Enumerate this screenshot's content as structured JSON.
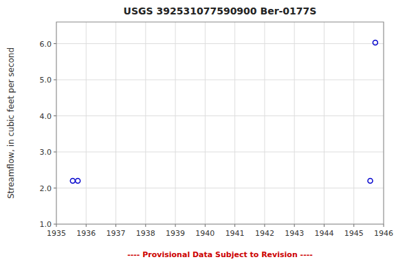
{
  "chart_data": {
    "type": "scatter",
    "title": "USGS 392531077590900  Ber-0177S",
    "ylabel": "Streamflow, in cubic feet per second",
    "x": [
      1935.55,
      1935.72,
      1945.55,
      1945.72
    ],
    "values": [
      2.2,
      2.2,
      2.2,
      6.03
    ],
    "color": "#0000cc",
    "marker": "circle",
    "xlim": [
      1935,
      1946
    ],
    "ylim": [
      1.0,
      6.6
    ],
    "xticks": [
      1935,
      1936,
      1937,
      1938,
      1939,
      1940,
      1941,
      1942,
      1943,
      1944,
      1945,
      1946
    ],
    "yticks": [
      {
        "value": 1.0,
        "label": "1.0"
      },
      {
        "value": 2.0,
        "label": "2.0"
      },
      {
        "value": 3.0,
        "label": "3.0"
      },
      {
        "value": 4.0,
        "label": "4.0"
      },
      {
        "value": 5.0,
        "label": "5.0"
      },
      {
        "value": 6.0,
        "label": "6.0"
      }
    ],
    "grid": true,
    "annotations": [
      {
        "text": "---- Provisional Data Subject to Revision ----",
        "color": "#cc0000"
      }
    ]
  }
}
